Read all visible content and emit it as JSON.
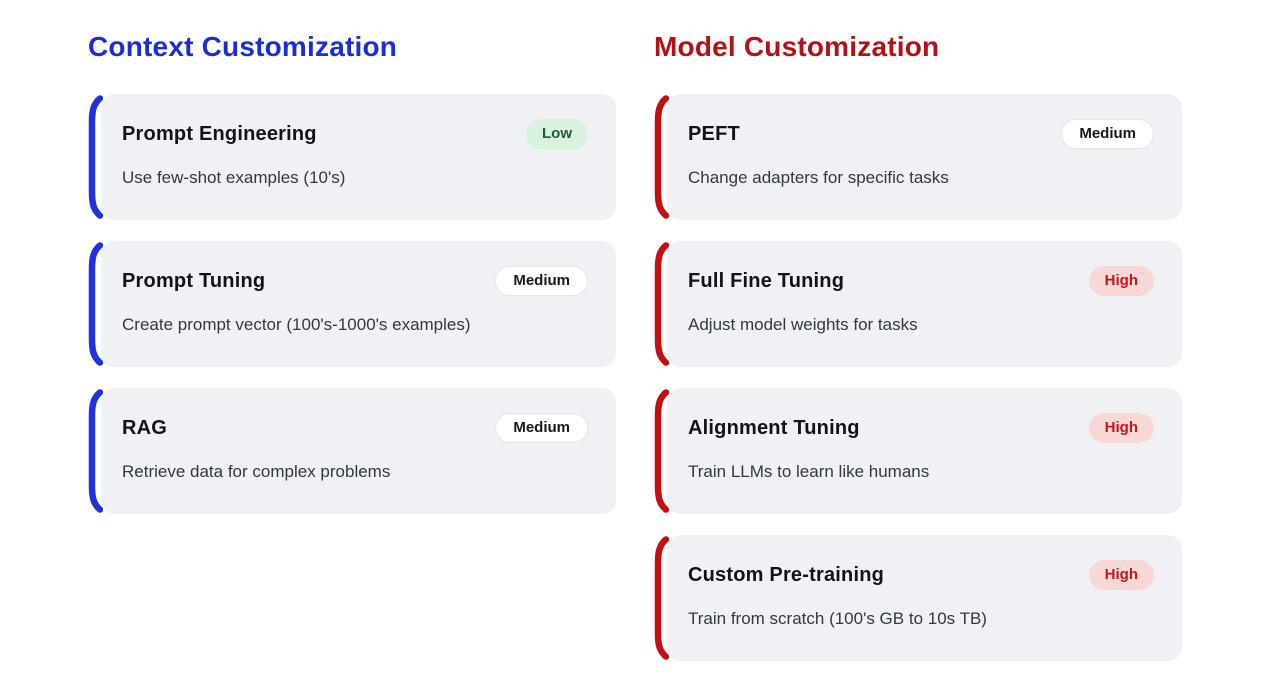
{
  "page": {
    "background": "#ffffff"
  },
  "columns": [
    {
      "title": "Context Customization",
      "title_color": "#1c2ed1",
      "accent_color": "#2132dc",
      "cards": [
        {
          "title": "Prompt Engineering",
          "description": "Use few-shot examples (10's)",
          "badge": {
            "label": "Low",
            "level": "low"
          }
        },
        {
          "title": "Prompt Tuning",
          "description": "Create prompt vector (100's-1000's examples)",
          "badge": {
            "label": "Medium",
            "level": "medium"
          }
        },
        {
          "title": "RAG",
          "description": "Retrieve data for complex problems",
          "badge": {
            "label": "Medium",
            "level": "medium"
          }
        }
      ]
    },
    {
      "title": "Model Customization",
      "title_color": "#b21117",
      "accent_color": "#c30e13",
      "cards": [
        {
          "title": "PEFT",
          "description": "Change adapters for specific tasks",
          "badge": {
            "label": "Medium",
            "level": "medium"
          }
        },
        {
          "title": "Full Fine Tuning",
          "description": "Adjust model weights for tasks",
          "badge": {
            "label": "High",
            "level": "high"
          }
        },
        {
          "title": "Alignment Tuning",
          "description": "Train LLMs to learn like humans",
          "badge": {
            "label": "High",
            "level": "high"
          }
        },
        {
          "title": "Custom Pre-training",
          "description": "Train from scratch (100's GB to 10s TB)",
          "badge": {
            "label": "High",
            "level": "high"
          }
        }
      ]
    }
  ],
  "badge_styles": {
    "low": {
      "bg": "#d9f2df",
      "text": "#1d5b38"
    },
    "medium": {
      "bg": "#ffffff",
      "text": "#17191d",
      "border": "#e3e6ea"
    },
    "high": {
      "bg": "#f8d8d5",
      "text": "#c2161b"
    }
  },
  "card_style": {
    "background": "#eff1f4"
  }
}
